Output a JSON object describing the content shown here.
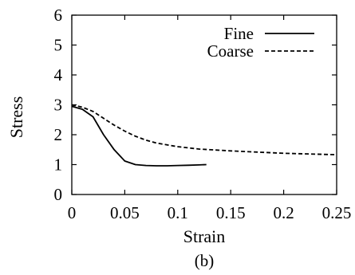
{
  "chart_data": {
    "type": "line",
    "title": "",
    "xlabel": "Strain",
    "ylabel": "Stress",
    "xlim": [
      0,
      0.25
    ],
    "ylim": [
      0,
      6
    ],
    "xticks": [
      "0",
      "0.05",
      "0.1",
      "0.15",
      "0.2",
      "0.25"
    ],
    "yticks": [
      "0",
      "1",
      "2",
      "3",
      "4",
      "5",
      "6"
    ],
    "grid": false,
    "legend_position": "top-right",
    "series": [
      {
        "name": "Fine",
        "style": "solid",
        "x": [
          0,
          0.01,
          0.02,
          0.03,
          0.04,
          0.05,
          0.06,
          0.07,
          0.08,
          0.09,
          0.1,
          0.11,
          0.12,
          0.127
        ],
        "y": [
          2.95,
          2.85,
          2.6,
          2.0,
          1.5,
          1.12,
          1.0,
          0.97,
          0.96,
          0.96,
          0.97,
          0.98,
          0.99,
          1.0
        ]
      },
      {
        "name": "Coarse",
        "style": "dashed",
        "x": [
          0,
          0.01,
          0.02,
          0.03,
          0.04,
          0.05,
          0.06,
          0.07,
          0.08,
          0.1,
          0.12,
          0.15,
          0.2,
          0.25
        ],
        "y": [
          3.0,
          2.92,
          2.78,
          2.55,
          2.32,
          2.12,
          1.95,
          1.82,
          1.72,
          1.6,
          1.52,
          1.46,
          1.38,
          1.33
        ]
      }
    ],
    "caption": "(b)"
  }
}
